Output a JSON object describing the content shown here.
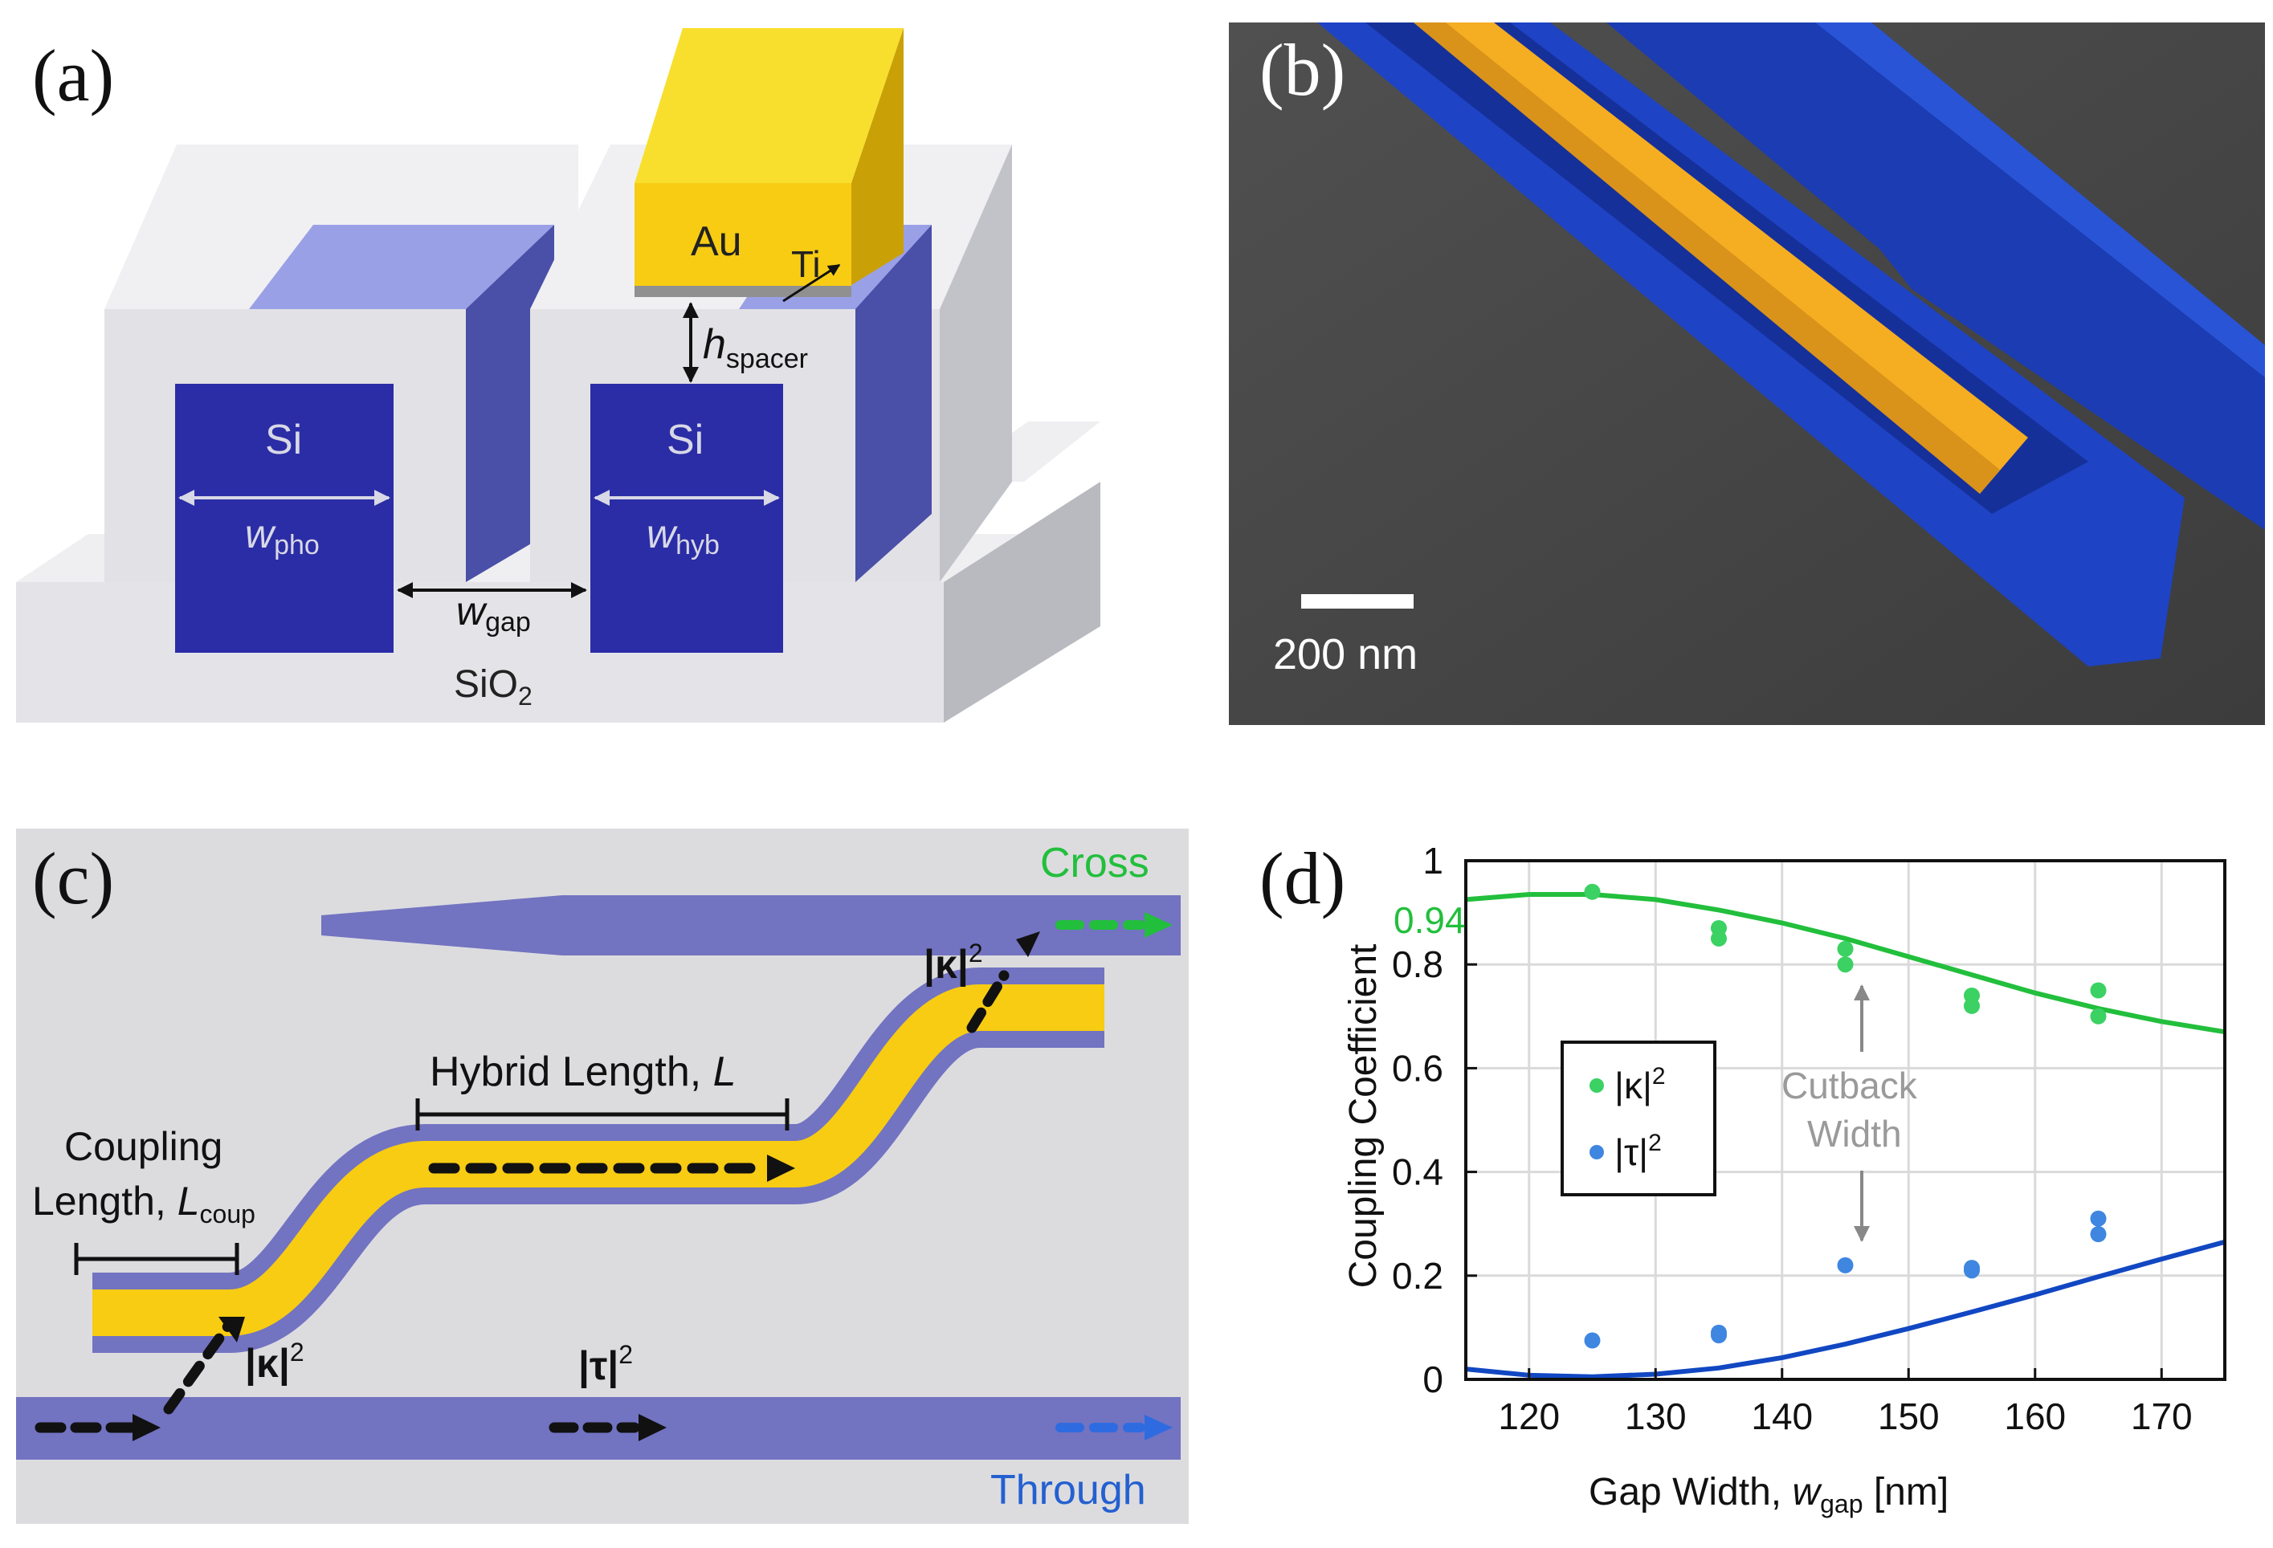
{
  "figure": {
    "panel_a": {
      "label": "(a)",
      "au": "Au",
      "ti": "Ti",
      "h_spacer": {
        "main": "h",
        "sub": "spacer"
      },
      "si_left": "Si",
      "si_right": "Si",
      "w_pho": {
        "main": "w",
        "sub": "pho"
      },
      "w_hyb": {
        "main": "w",
        "sub": "hyb"
      },
      "w_gap": {
        "main": "w",
        "sub": "gap"
      },
      "sio2": {
        "main": "SiO",
        "sub": "2"
      }
    },
    "panel_b": {
      "label": "(b)",
      "scale_bar": "200 nm"
    },
    "panel_c": {
      "label": "(c)",
      "cross": "Cross",
      "through": "Through",
      "hybrid_length": {
        "main": "Hybrid Length, ",
        "var": "L"
      },
      "coupling_length_1": "Coupling",
      "coupling_length_2": {
        "main": "Length, ",
        "var": "L",
        "sub": "coup"
      },
      "kappa_top": {
        "main": "|κ|",
        "sup": "2"
      },
      "kappa_bottom": {
        "main": "|κ|",
        "sup": "2"
      },
      "tau": {
        "main": "|τ|",
        "sup": "2"
      }
    },
    "panel_d": {
      "label": "(d)",
      "annotation_value": "0.94",
      "cutback_1": "Cutback",
      "cutback_2": "Width",
      "legend": [
        {
          "main": "|κ|",
          "sup": "2"
        },
        {
          "main": "|τ|",
          "sup": "2"
        }
      ]
    }
  },
  "colors": {
    "green": "#22bf3c",
    "green_dots": "#3bd163",
    "blue_line": "#1147c2",
    "blue_dots": "#3f86e0",
    "si_blue": "#2b2da6",
    "waveguide": "#7273c1",
    "gold": "#f7cc13",
    "sem_bg": "#4a4a4a",
    "sem_blue": "#1e43c4",
    "sem_gold": "#f5ad22"
  },
  "chart_data": {
    "type": "scatter",
    "title": "",
    "xlabel": "Gap Width, w_gap [nm]",
    "xlabel_parts": {
      "main": "Gap Width, ",
      "var": "w",
      "sub": "gap",
      "unit": " [nm]"
    },
    "ylabel": "Coupling Coefficient",
    "xlim": [
      115,
      175
    ],
    "ylim": [
      0,
      1
    ],
    "xticks": [
      120,
      130,
      140,
      150,
      160,
      170
    ],
    "yticks": [
      0,
      0.2,
      0.4,
      0.6,
      0.8,
      1
    ],
    "ytick_labels": [
      "0",
      "0.2",
      "0.4",
      "0.6",
      "0.8",
      "1"
    ],
    "grid": true,
    "legend_position": "center-left",
    "series": [
      {
        "name": "|κ|²",
        "kind": "points",
        "color": "#3bd163",
        "x": [
          125,
          135,
          135,
          145,
          145,
          155,
          155,
          165,
          165
        ],
        "y": [
          0.94,
          0.87,
          0.85,
          0.83,
          0.8,
          0.74,
          0.72,
          0.75,
          0.7
        ]
      },
      {
        "name": "|τ|²",
        "kind": "points",
        "color": "#3f86e0",
        "x": [
          125,
          135,
          135,
          145,
          155,
          155,
          165,
          165
        ],
        "y": [
          0.075,
          0.09,
          0.085,
          0.22,
          0.215,
          0.21,
          0.31,
          0.28
        ]
      },
      {
        "name": "|κ|² fit",
        "kind": "line",
        "color": "#22bf3c",
        "x": [
          115,
          120,
          125,
          130,
          135,
          140,
          145,
          150,
          155,
          160,
          165,
          170,
          175
        ],
        "y": [
          0.925,
          0.935,
          0.935,
          0.925,
          0.905,
          0.88,
          0.85,
          0.815,
          0.78,
          0.745,
          0.715,
          0.69,
          0.67
        ]
      },
      {
        "name": "|τ|² fit",
        "kind": "line",
        "color": "#1147c2",
        "x": [
          115,
          120,
          125,
          130,
          135,
          140,
          145,
          150,
          155,
          160,
          165,
          170,
          175
        ],
        "y": [
          0.02,
          0.008,
          0.005,
          0.01,
          0.022,
          0.042,
          0.068,
          0.098,
          0.13,
          0.163,
          0.198,
          0.232,
          0.265
        ]
      }
    ]
  }
}
